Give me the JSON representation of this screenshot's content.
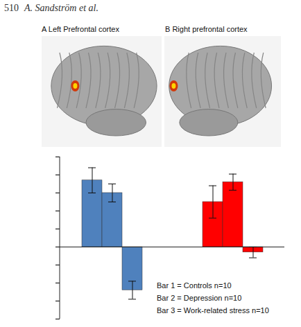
{
  "header": {
    "page": "510",
    "authors": "A. Sandström et al."
  },
  "panels": [
    {
      "letter": "A",
      "title": "Left Prefrontal cortex"
    },
    {
      "letter": "B",
      "title": "Right prefrontal cortex"
    }
  ],
  "chart_data": {
    "type": "bar",
    "categories": [
      null,
      null,
      null,
      null,
      null,
      null,
      null,
      null,
      null
    ],
    "values": [
      3.7,
      3.0,
      -2.4,
      null,
      null,
      null,
      2.5,
      3.6,
      -0.3
    ],
    "errors": [
      0.7,
      0.5,
      0.5,
      null,
      null,
      null,
      0.9,
      0.45,
      0.3
    ],
    "colors": [
      "#4f81bd",
      "#4f81bd",
      "#4f81bd",
      null,
      null,
      null,
      "#ff0000",
      "#ff0000",
      "#ff0000"
    ],
    "ylim": [
      -4,
      5
    ],
    "yticks": [
      -4,
      -3,
      -2,
      -1,
      0,
      1,
      2,
      3,
      4,
      5
    ],
    "tick_labels": false,
    "annotations": [
      "Bar 1 = Controls n=10",
      "Bar 2 = Depression n=10",
      "Bar 3 = Work-related stress n=10"
    ]
  }
}
